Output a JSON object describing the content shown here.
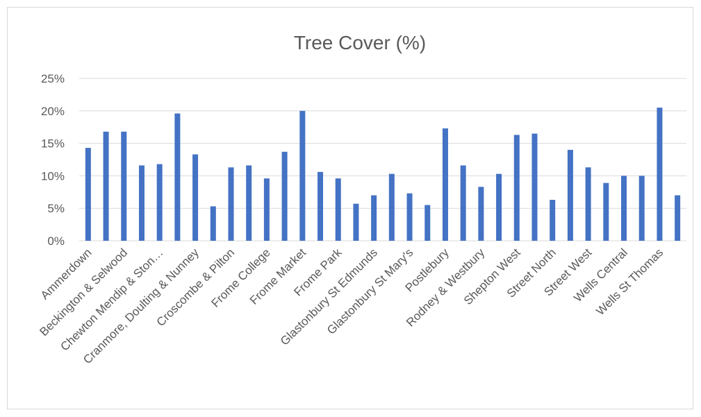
{
  "chart_data": {
    "type": "bar",
    "title": "Tree Cover (%)",
    "xlabel": "",
    "ylabel": "",
    "ylim": [
      0,
      25
    ],
    "yticks": [
      "0%",
      "5%",
      "10%",
      "15%",
      "20%",
      "25%"
    ],
    "grid": true,
    "legend": "none",
    "bar_color": "#4472C4",
    "categories": [
      "Ammerdown",
      "",
      "Beckington & Selwood",
      "",
      "Chewton Mendip & Ston…",
      "",
      "Cranmore, Doulting & Nunney",
      "",
      "Croscombe & Pilton",
      "",
      "Frome College",
      "",
      "Frome Market",
      "",
      "Frome Park",
      "",
      "Glastonbury St Edmunds",
      "",
      "Glastonbury St Mary's",
      "",
      "Postlebury",
      "",
      "Rodney & Westbury",
      "",
      "Shepton West",
      "",
      "Street North",
      "",
      "Street West",
      "",
      "Wells Central",
      "",
      "Wells St Thomas",
      ""
    ],
    "values": [
      14.3,
      16.8,
      16.8,
      11.6,
      11.8,
      19.6,
      13.3,
      5.3,
      11.3,
      11.6,
      9.6,
      13.7,
      20.0,
      10.6,
      9.6,
      5.7,
      7.0,
      10.3,
      7.3,
      5.5,
      17.3,
      11.6,
      8.3,
      10.3,
      16.3,
      16.5,
      6.3,
      14.0,
      11.3,
      8.9,
      10.0,
      10.0,
      20.5,
      7.0
    ]
  }
}
